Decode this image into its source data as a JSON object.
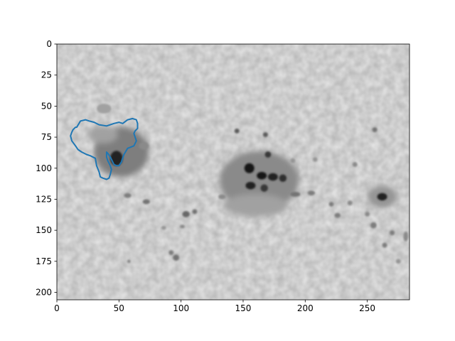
{
  "chart_data": {
    "type": "image",
    "title": "",
    "xlabel": "",
    "ylabel": "",
    "xlim": [
      0,
      284
    ],
    "ylim": [
      206,
      0
    ],
    "xticks": [
      0,
      50,
      100,
      150,
      200,
      250
    ],
    "yticks": [
      0,
      25,
      50,
      75,
      100,
      125,
      150,
      175,
      200
    ],
    "xtick_labels": [
      "0",
      "50",
      "100",
      "150",
      "200",
      "250"
    ],
    "ytick_labels": [
      "0",
      "25",
      "50",
      "75",
      "100",
      "125",
      "150",
      "175",
      "200"
    ],
    "grid": false,
    "image": {
      "colormap": "gray",
      "background_level": 0.9,
      "spots": [
        {
          "x": 48,
          "y": 92,
          "rx": 5,
          "ry": 6,
          "darkness": 0.85,
          "kind": "umbra"
        },
        {
          "x": 52,
          "y": 87,
          "rx": 22,
          "ry": 20,
          "darkness": 0.45,
          "kind": "penumbra"
        },
        {
          "x": 37,
          "y": 73,
          "rx": 12,
          "ry": 7,
          "darkness": 0.3,
          "kind": "penumbra"
        },
        {
          "x": 155,
          "y": 100,
          "rx": 4,
          "ry": 4,
          "darkness": 0.9,
          "kind": "umbra"
        },
        {
          "x": 165,
          "y": 106,
          "rx": 4,
          "ry": 3,
          "darkness": 0.9,
          "kind": "umbra"
        },
        {
          "x": 174,
          "y": 107,
          "rx": 4,
          "ry": 3,
          "darkness": 0.85,
          "kind": "umbra"
        },
        {
          "x": 182,
          "y": 108,
          "rx": 3,
          "ry": 3,
          "darkness": 0.8,
          "kind": "umbra"
        },
        {
          "x": 156,
          "y": 114,
          "rx": 4,
          "ry": 3,
          "darkness": 0.85,
          "kind": "umbra"
        },
        {
          "x": 167,
          "y": 116,
          "rx": 3,
          "ry": 3,
          "darkness": 0.75,
          "kind": "umbra"
        },
        {
          "x": 163,
          "y": 110,
          "rx": 32,
          "ry": 24,
          "darkness": 0.4,
          "kind": "penumbra"
        },
        {
          "x": 160,
          "y": 130,
          "rx": 26,
          "ry": 9,
          "darkness": 0.3,
          "kind": "penumbra"
        },
        {
          "x": 170,
          "y": 89,
          "rx": 2.5,
          "ry": 2.5,
          "darkness": 0.75,
          "kind": "pore"
        },
        {
          "x": 145,
          "y": 70,
          "rx": 2,
          "ry": 2,
          "darkness": 0.6,
          "kind": "pore"
        },
        {
          "x": 168,
          "y": 73,
          "rx": 2,
          "ry": 2,
          "darkness": 0.6,
          "kind": "pore"
        },
        {
          "x": 262,
          "y": 123,
          "rx": 4,
          "ry": 3,
          "darkness": 0.85,
          "kind": "umbra"
        },
        {
          "x": 262,
          "y": 123,
          "rx": 12,
          "ry": 9,
          "darkness": 0.35,
          "kind": "penumbra"
        },
        {
          "x": 256,
          "y": 69,
          "rx": 2,
          "ry": 2,
          "darkness": 0.5,
          "kind": "pore"
        },
        {
          "x": 240,
          "y": 97,
          "rx": 2,
          "ry": 2,
          "darkness": 0.4,
          "kind": "pore"
        },
        {
          "x": 38,
          "y": 52,
          "rx": 6,
          "ry": 4,
          "darkness": 0.3,
          "kind": "pore"
        },
        {
          "x": 70,
          "y": 82,
          "rx": 4,
          "ry": 3,
          "darkness": 0.4,
          "kind": "pore"
        },
        {
          "x": 72,
          "y": 127,
          "rx": 3,
          "ry": 2,
          "darkness": 0.5,
          "kind": "pore"
        },
        {
          "x": 57,
          "y": 122,
          "rx": 3,
          "ry": 2,
          "darkness": 0.45,
          "kind": "pore"
        },
        {
          "x": 104,
          "y": 137,
          "rx": 3,
          "ry": 2.5,
          "darkness": 0.55,
          "kind": "pore"
        },
        {
          "x": 111,
          "y": 135,
          "rx": 2,
          "ry": 2,
          "darkness": 0.5,
          "kind": "pore"
        },
        {
          "x": 96,
          "y": 172,
          "rx": 2.5,
          "ry": 2.5,
          "darkness": 0.5,
          "kind": "pore"
        },
        {
          "x": 92,
          "y": 168,
          "rx": 2,
          "ry": 2,
          "darkness": 0.45,
          "kind": "pore"
        },
        {
          "x": 86,
          "y": 148,
          "rx": 2,
          "ry": 1.5,
          "darkness": 0.35,
          "kind": "pore"
        },
        {
          "x": 101,
          "y": 147,
          "rx": 2,
          "ry": 1.5,
          "darkness": 0.4,
          "kind": "pore"
        },
        {
          "x": 192,
          "y": 121,
          "rx": 4,
          "ry": 2,
          "darkness": 0.5,
          "kind": "pore"
        },
        {
          "x": 205,
          "y": 120,
          "rx": 3,
          "ry": 2,
          "darkness": 0.45,
          "kind": "pore"
        },
        {
          "x": 221,
          "y": 129,
          "rx": 2,
          "ry": 2,
          "darkness": 0.45,
          "kind": "pore"
        },
        {
          "x": 226,
          "y": 138,
          "rx": 2.5,
          "ry": 2,
          "darkness": 0.45,
          "kind": "pore"
        },
        {
          "x": 236,
          "y": 128,
          "rx": 2,
          "ry": 2,
          "darkness": 0.4,
          "kind": "pore"
        },
        {
          "x": 250,
          "y": 137,
          "rx": 2,
          "ry": 2,
          "darkness": 0.4,
          "kind": "pore"
        },
        {
          "x": 255,
          "y": 146,
          "rx": 2.5,
          "ry": 2.5,
          "darkness": 0.45,
          "kind": "pore"
        },
        {
          "x": 270,
          "y": 152,
          "rx": 2,
          "ry": 2,
          "darkness": 0.45,
          "kind": "pore"
        },
        {
          "x": 264,
          "y": 162,
          "rx": 2,
          "ry": 2,
          "darkness": 0.45,
          "kind": "pore"
        },
        {
          "x": 281,
          "y": 155,
          "rx": 2,
          "ry": 4,
          "darkness": 0.4,
          "kind": "pore"
        },
        {
          "x": 275,
          "y": 175,
          "rx": 2,
          "ry": 2,
          "darkness": 0.35,
          "kind": "pore"
        },
        {
          "x": 58,
          "y": 175,
          "rx": 1.5,
          "ry": 1.5,
          "darkness": 0.4,
          "kind": "pore"
        },
        {
          "x": 133,
          "y": 123,
          "rx": 3,
          "ry": 2,
          "darkness": 0.4,
          "kind": "pore"
        },
        {
          "x": 142,
          "y": 100,
          "rx": 2,
          "ry": 2,
          "darkness": 0.4,
          "kind": "pore"
        },
        {
          "x": 190,
          "y": 94,
          "rx": 2,
          "ry": 2,
          "darkness": 0.35,
          "kind": "pore"
        },
        {
          "x": 208,
          "y": 93,
          "rx": 2,
          "ry": 2,
          "darkness": 0.35,
          "kind": "pore"
        }
      ]
    },
    "series": [
      {
        "type": "contour",
        "color": "#1f77b4",
        "x": [
          16,
          19,
          23,
          26,
          30,
          34,
          40,
          46,
          50,
          53,
          57,
          61,
          64,
          65,
          65,
          63,
          62,
          64,
          62,
          57,
          54,
          52,
          50,
          48,
          46,
          45,
          43,
          41,
          40,
          40,
          41,
          42,
          43,
          44,
          43,
          42,
          40,
          37,
          35,
          34,
          32,
          31,
          27,
          24,
          20,
          17,
          15,
          12,
          11,
          12,
          13,
          15,
          16
        ],
        "y": [
          67,
          62,
          61,
          62,
          63,
          65,
          66,
          64,
          63,
          64,
          61,
          60,
          61,
          64,
          68,
          70,
          72,
          78,
          82,
          84,
          89,
          95,
          98,
          98,
          97,
          95,
          91,
          88,
          87,
          91,
          94,
          96,
          98,
          101,
          105,
          108,
          109,
          108,
          107,
          103,
          98,
          92,
          90,
          89,
          87,
          85,
          82,
          78,
          74,
          71,
          69,
          67,
          67
        ]
      }
    ]
  },
  "colors": {
    "contour": "#1f77b4",
    "axis": "#000000",
    "background": "#ffffff"
  }
}
